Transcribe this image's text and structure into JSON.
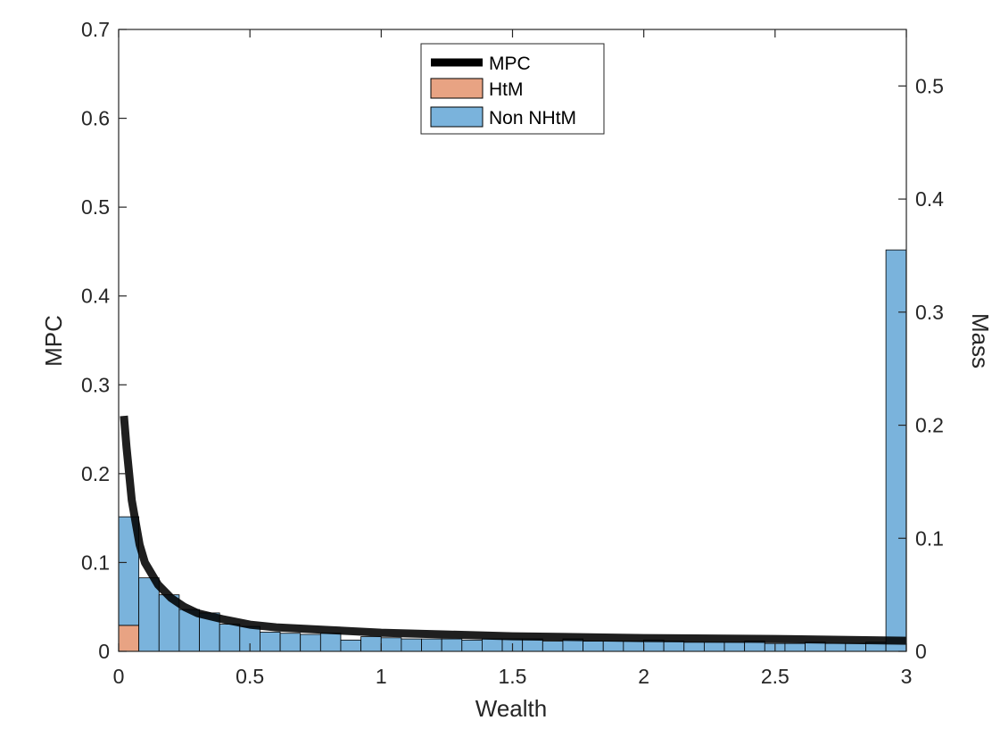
{
  "chart_data": {
    "type": "bar",
    "xlabel": "Wealth",
    "ylabel_left": "MPC",
    "ylabel_right": "Mass",
    "xlim": [
      0,
      3
    ],
    "ylim_left": [
      0,
      0.7
    ],
    "ylim_right": [
      0,
      0.55
    ],
    "x_ticks": [
      "0",
      "0.5",
      "1",
      "1.5",
      "2",
      "2.5",
      "3"
    ],
    "y_left_ticks": [
      "0",
      "0.1",
      "0.2",
      "0.3",
      "0.4",
      "0.5",
      "0.6",
      "0.7"
    ],
    "y_right_ticks": [
      "0",
      "0.1",
      "0.2",
      "0.3",
      "0.4",
      "0.5"
    ],
    "legend": {
      "placement": "top-center",
      "entries": [
        "MPC",
        "HtM",
        "Non NHtM"
      ]
    },
    "colors": {
      "mpc": "#000000",
      "htm": "#E8A383",
      "non_htm": "#7AB3DC"
    },
    "mass_bins": {
      "bin_width": 0.0769,
      "x_start": 0,
      "htm": [
        0.023,
        0,
        0,
        0,
        0,
        0,
        0,
        0,
        0,
        0,
        0,
        0,
        0,
        0,
        0,
        0,
        0,
        0,
        0,
        0,
        0,
        0,
        0,
        0,
        0,
        0,
        0,
        0,
        0,
        0,
        0,
        0,
        0,
        0,
        0,
        0,
        0,
        0,
        0
      ],
      "non_htm": [
        0.096,
        0.065,
        0.05,
        0.037,
        0.034,
        0.024,
        0.022,
        0.017,
        0.016,
        0.015,
        0.016,
        0.01,
        0.013,
        0.012,
        0.011,
        0.011,
        0.011,
        0.01,
        0.011,
        0.011,
        0.011,
        0.009,
        0.011,
        0.009,
        0.009,
        0.009,
        0.01,
        0.009,
        0.008,
        0.008,
        0.008,
        0.009,
        0.007,
        0.007,
        0.008,
        0.007,
        0.007,
        0.008,
        0.355
      ]
    },
    "series": [
      {
        "name": "MPC",
        "x": [
          0.02,
          0.03,
          0.05,
          0.08,
          0.1,
          0.15,
          0.2,
          0.25,
          0.3,
          0.4,
          0.5,
          0.6,
          0.8,
          1.0,
          1.25,
          1.5,
          2.0,
          2.5,
          3.0
        ],
        "y": [
          0.265,
          0.23,
          0.17,
          0.12,
          0.1,
          0.075,
          0.06,
          0.05,
          0.043,
          0.036,
          0.03,
          0.027,
          0.024,
          0.021,
          0.019,
          0.017,
          0.015,
          0.014,
          0.012
        ]
      }
    ]
  }
}
